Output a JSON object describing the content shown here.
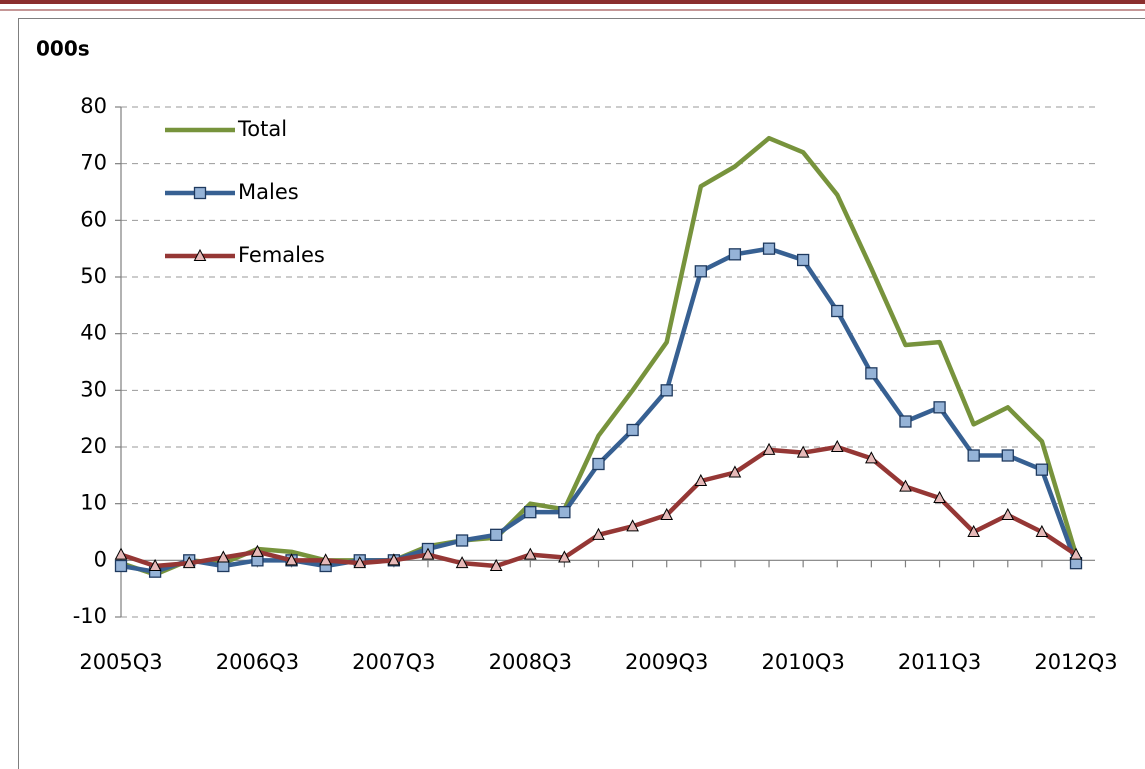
{
  "chart_data": {
    "type": "line",
    "y_axis_label": "000s",
    "categories": [
      "2005Q3",
      null,
      null,
      null,
      "2006Q3",
      null,
      null,
      null,
      "2007Q3",
      null,
      null,
      null,
      "2008Q3",
      null,
      null,
      null,
      "2009Q3",
      null,
      null,
      null,
      "2010Q3",
      null,
      null,
      null,
      "2011Q3",
      null,
      null,
      null,
      "2012Q3"
    ],
    "series": [
      {
        "name": "Total",
        "color": "#77933c",
        "marker": "none",
        "values": [
          -0.5,
          -2.5,
          0,
          -0.5,
          2,
          1.5,
          0,
          0,
          0,
          2.5,
          3.5,
          4,
          10,
          9,
          22,
          30,
          38.5,
          66,
          69.5,
          74.5,
          72,
          64.5,
          51.5,
          38,
          38.5,
          24,
          27,
          21,
          1
        ]
      },
      {
        "name": "Males",
        "color": "#376092",
        "marker": "square",
        "marker_color": "#95b3d7",
        "values": [
          -1,
          -2,
          0,
          -1,
          0,
          0,
          -1,
          0,
          0,
          2,
          3.5,
          4.5,
          8.5,
          8.5,
          17,
          23,
          30,
          51,
          54,
          55,
          53,
          44,
          33,
          24.5,
          27,
          18.5,
          18.5,
          16,
          -0.5
        ]
      },
      {
        "name": "Females",
        "color": "#953735",
        "marker": "triangle",
        "marker_color": "#e6b9b8",
        "values": [
          1,
          -1,
          -0.5,
          0.5,
          1.5,
          0,
          0,
          -0.5,
          0,
          1,
          -0.5,
          -1,
          1,
          0.5,
          4.5,
          6,
          8,
          14,
          15.5,
          19.5,
          19,
          20,
          18,
          13,
          11,
          5,
          8,
          5,
          1
        ]
      }
    ],
    "ylim": [
      -10,
      80
    ],
    "yticks": [
      -10,
      0,
      10,
      20,
      30,
      40,
      50,
      60,
      70,
      80
    ],
    "grid": true,
    "legend": "top-left"
  }
}
